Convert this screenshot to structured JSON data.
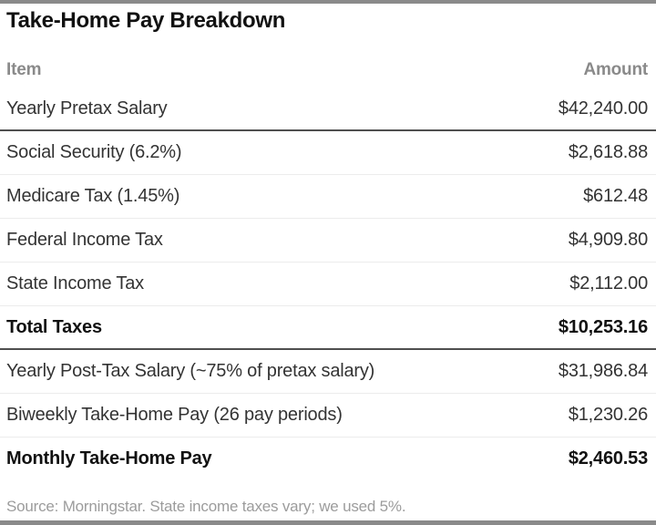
{
  "title": "Take-Home Pay Breakdown",
  "table": {
    "columns": [
      "Item",
      "Amount"
    ],
    "rows": [
      {
        "item": "Yearly Pretax Salary",
        "amount": "$42,240.00"
      },
      {
        "item": "Social Security (6.2%)",
        "amount": "$2,618.88"
      },
      {
        "item": "Medicare Tax (1.45%)",
        "amount": "$612.48"
      },
      {
        "item": "Federal Income Tax",
        "amount": "$4,909.80"
      },
      {
        "item": "State Income Tax",
        "amount": "$2,112.00"
      },
      {
        "item": "Total Taxes",
        "amount": "$10,253.16"
      },
      {
        "item": "Yearly Post-Tax Salary (~75% of pretax salary)",
        "amount": "$31,986.84"
      },
      {
        "item": "Biweekly Take-Home Pay (26 pay periods)",
        "amount": "$1,230.26"
      },
      {
        "item": "Monthly Take-Home Pay",
        "amount": "$2,460.53"
      }
    ]
  },
  "footer": {
    "source": "Source: Morningstar. State income taxes vary; we used 5%."
  },
  "colors": {
    "rule_gray": "#8a8a8a",
    "thick_rule": "#4f4f4f",
    "thin_rule": "#ececec",
    "header_gray": "#8a8a8a",
    "body_text": "#333333",
    "bold_text": "#111111",
    "source_gray": "#9c9c9c"
  },
  "chart_data": {
    "type": "table",
    "title": "Take-Home Pay Breakdown",
    "columns": [
      "Item",
      "Amount"
    ],
    "rows": [
      [
        "Yearly Pretax Salary",
        "$42,240.00"
      ],
      [
        "Social Security (6.2%)",
        "$2,618.88"
      ],
      [
        "Medicare Tax (1.45%)",
        "$612.48"
      ],
      [
        "Federal Income Tax",
        "$4,909.80"
      ],
      [
        "State Income Tax",
        "$2,112.00"
      ],
      [
        "Total Taxes",
        "$10,253.16"
      ],
      [
        "Yearly Post-Tax Salary (~75% of pretax salary)",
        "$31,986.84"
      ],
      [
        "Biweekly Take-Home Pay (26 pay periods)",
        "$1,230.26"
      ],
      [
        "Monthly Take-Home Pay",
        "$2,460.53"
      ]
    ],
    "values": [
      42240.0,
      2618.88,
      612.48,
      4909.8,
      2112.0,
      10253.16,
      31986.84,
      1230.26,
      2460.53
    ],
    "bold_rows": [
      "Total Taxes",
      "Monthly Take-Home Pay"
    ],
    "source": "Source: Morningstar. State income taxes vary; we used 5%."
  }
}
